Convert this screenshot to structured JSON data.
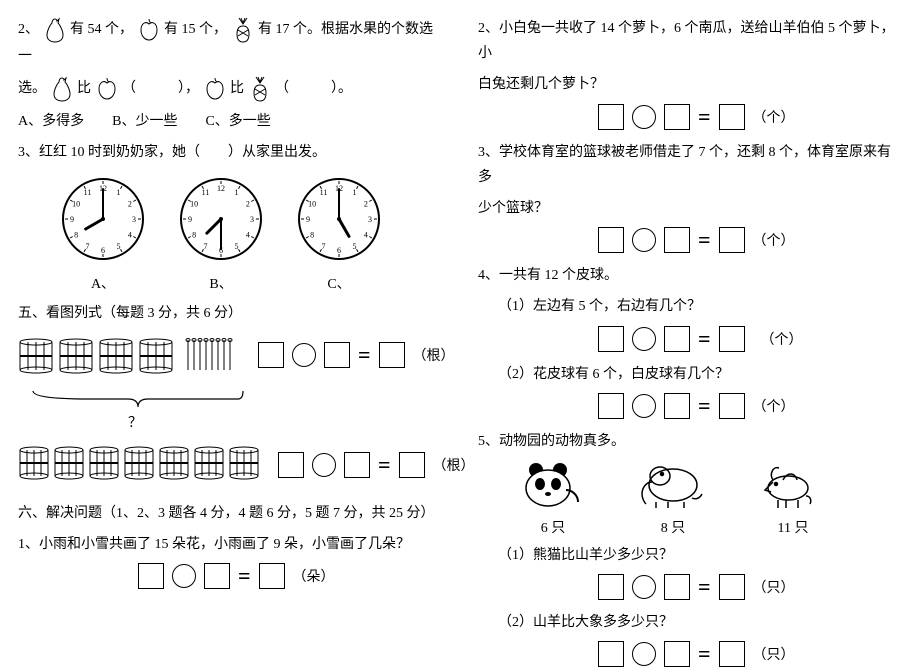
{
  "left": {
    "q2": {
      "prefix": "2、",
      "c1": "有 54 个，",
      "c2": "有 15 个，",
      "c3": "有 17 个。根据水果的个数选一",
      "line2a": "选。",
      "cmp1": "比",
      "blank": "（　　　），",
      "cmp2": "比",
      "blank2": "（　　　）。",
      "opts": "A、多得多　　B、少一些　　C、多一些"
    },
    "q3": {
      "text": "3、红红 10 时到奶奶家，她（　　）从家里出发。",
      "labels": [
        "A、",
        "B、",
        "C、"
      ]
    },
    "sec5": {
      "title": "五、看图列式（每题 3 分，共 6 分）",
      "unit": "（根）",
      "qmark": "？"
    },
    "sec6": {
      "title": "六、解决问题（1、2、3 题各 4 分，4 题 6 分，5 题 7 分，共 25 分）",
      "q1": "1、小雨和小雪共画了 15 朵花，小雨画了 9 朵，小雪画了几朵？",
      "unit1": "（朵）"
    }
  },
  "right": {
    "q2": {
      "l1": "2、小白兔一共收了 14 个萝卜，6 个南瓜，送给山羊伯伯 5 个萝卜，小",
      "l2": "白兔还剩几个萝卜？",
      "unit": "（个）"
    },
    "q3": {
      "l1": "3、学校体育室的篮球被老师借走了 7 个，还剩 8 个，体育室原来有多",
      "l2": "少个篮球？",
      "unit": "（个）"
    },
    "q4": {
      "title": "4、一共有 12 个皮球。",
      "s1": "（1）左边有 5 个，右边有几个？",
      "s2": "（2）花皮球有 6 个，白皮球有几个？",
      "unit": "（个）"
    },
    "q5": {
      "title": "5、动物园的动物真多。",
      "counts": [
        "6 只",
        "8 只",
        "11 只"
      ],
      "s1": "（1）熊猫比山羊少多少只？",
      "s2": "（2）山羊比大象多多少只？",
      "unit": "（只）"
    }
  },
  "clocks": [
    {
      "hour": 8,
      "minute": 0
    },
    {
      "hour": 7,
      "minute": 30
    },
    {
      "hour": 5,
      "minute": 0
    }
  ]
}
